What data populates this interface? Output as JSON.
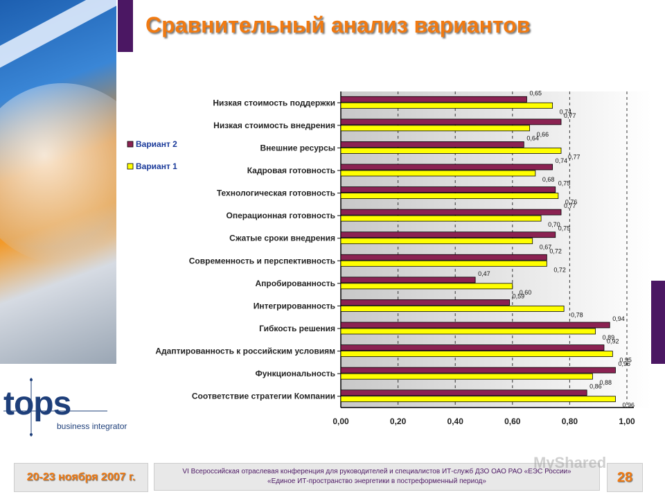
{
  "slide": {
    "title": "Сравнительный анализ вариантов",
    "footer_date": "20-23 ноября 2007 г.",
    "footer_line1": "VI Всероссийская  отраслевая конференция для руководителей и специалистов ИТ-служб  ДЗО  ОАО  РАО «ЕЭС России»",
    "footer_line2": "«Единое  ИТ-пространство энергетики в постреформенный период»",
    "page_number": "28",
    "logo_text": "tops",
    "logo_sub": "business integrator",
    "watermark": "MyShared"
  },
  "colors": {
    "variant2": "#8b2252",
    "variant1": "#ffff00",
    "accent": "#4b1763",
    "title": "#f07a12"
  },
  "chart_data": {
    "type": "bar",
    "orientation": "horizontal",
    "categories": [
      "Низкая стоимость поддержки",
      "Низкая стоимость внедрения",
      "Внешние ресурсы",
      "Кадровая готовность",
      "Технологическая готовность",
      "Операционная готовность",
      "Сжатые сроки внедрения",
      "Современность и перспективность",
      "Апробированность",
      "Интегрированность",
      "Гибкость решения",
      "Адаптированность к российским условиям",
      "Функциональность",
      "Соответствие стратегии Компании"
    ],
    "series": [
      {
        "name": "Вариант 2",
        "values": [
          0.65,
          0.77,
          0.64,
          0.74,
          0.75,
          0.77,
          0.75,
          0.72,
          0.47,
          0.59,
          0.94,
          0.92,
          0.96,
          0.86
        ],
        "labels": [
          "0,65",
          "0,77",
          "0,64",
          "0,74",
          "0,75",
          "0,77",
          "0,75",
          "0,72",
          "0,47",
          "0,59",
          "0,94",
          "0,92",
          "0,96",
          "0,86"
        ]
      },
      {
        "name": "Вариант 1",
        "values": [
          0.74,
          0.66,
          0.77,
          0.68,
          0.76,
          0.7,
          0.67,
          0.72,
          0.6,
          0.78,
          0.89,
          0.95,
          0.88,
          0.96
        ],
        "labels": [
          "0,74",
          "0,66",
          "0,77",
          "0,68",
          "0,76",
          "0,70",
          "0,67",
          "0,72",
          "0,60",
          "0,78",
          "0,89",
          "0,95",
          "0,88",
          "0,96"
        ]
      }
    ],
    "xlim": [
      0,
      1.0
    ],
    "xticks": [
      "0,00",
      "0,20",
      "0,40",
      "0,60",
      "0,80",
      "1,00"
    ],
    "grid": "dashed vertical lines",
    "legend_position": "left"
  }
}
